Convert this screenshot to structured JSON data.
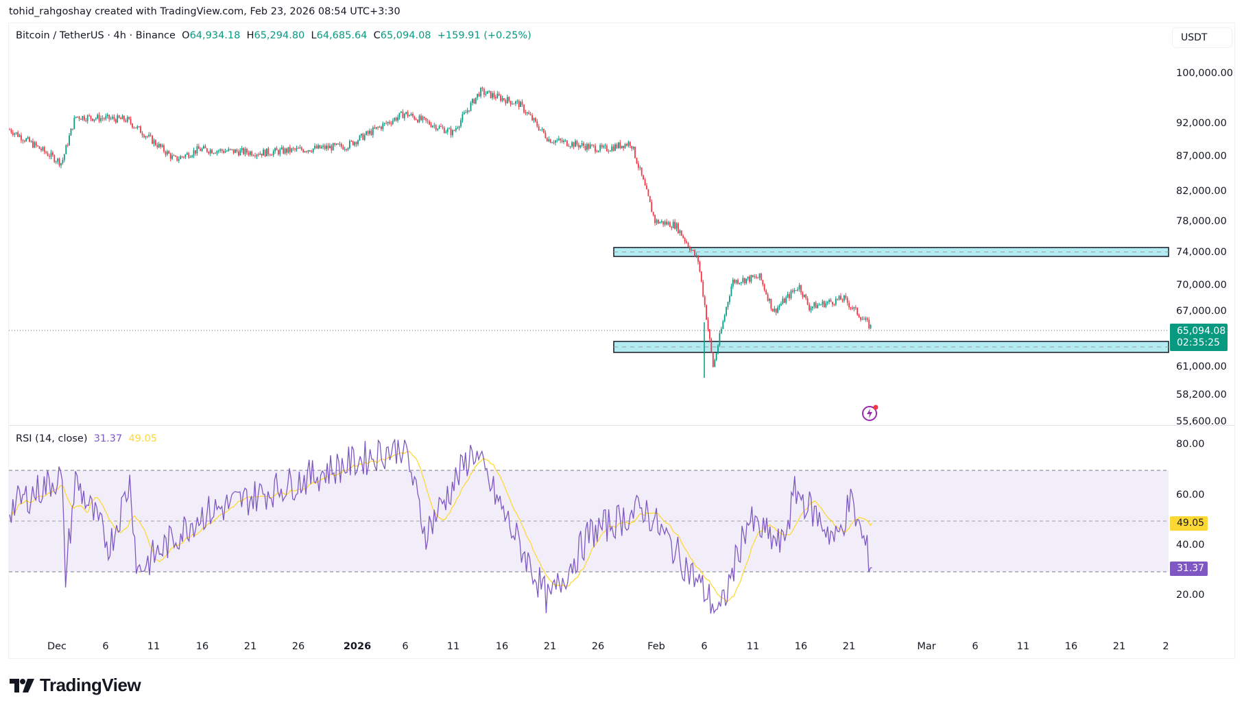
{
  "credit": "tohid_rahgoshay created with TradingView.com, Feb 23, 2026 08:54 UTC+3:30",
  "legend": {
    "symbol": "Bitcoin / TetherUS · 4h · Binance",
    "o_label": "O",
    "o": "64,934.18",
    "h_label": "H",
    "h": "65,294.80",
    "l_label": "L",
    "l": "64,685.64",
    "c_label": "C",
    "c": "65,094.08",
    "change": "+159.91 (+0.25%)"
  },
  "currency_button": "USDT",
  "price_axis": [
    "100,000.00",
    "92,000.00",
    "87,000.00",
    "82,000.00",
    "78,000.00",
    "74,000.00",
    "70,000.00",
    "67,000.00",
    "61,000.00",
    "58,200.00",
    "55,600.00"
  ],
  "last_price": {
    "value": "65,094.08",
    "countdown": "02:35:25"
  },
  "rsi": {
    "title": "RSI (14, close)",
    "value": "31.37",
    "ma_value": "49.05",
    "axis": [
      "80.00",
      "60.00",
      "40.00",
      "20.00"
    ]
  },
  "time_axis": [
    "Dec",
    "6",
    "11",
    "16",
    "21",
    "26",
    "2026",
    "6",
    "11",
    "16",
    "21",
    "26",
    "Feb",
    "6",
    "11",
    "16",
    "21",
    "Mar",
    "6",
    "11",
    "16",
    "21",
    "2"
  ],
  "logo": "TradingView",
  "colors": {
    "up": "#089981",
    "down": "#f23645",
    "rsi": "#7e57c2",
    "rsi_ma": "#fdd835",
    "zone": "#b2ebf2"
  },
  "chart_data": [
    {
      "type": "candlestick",
      "title": "Bitcoin / TetherUS · 4h · Binance",
      "ylabel": "USDT",
      "ylim": [
        55600,
        103000
      ],
      "x_range": [
        "2025-11-28",
        "2026-03-02"
      ],
      "ohlc_last": {
        "open": 64934.18,
        "high": 65294.8,
        "low": 64685.64,
        "close": 65094.08,
        "change": 159.91,
        "change_pct": 0.25
      },
      "approx_path": [
        {
          "date": "Nov 28",
          "close": 91000
        },
        {
          "date": "Dec 1",
          "close": 86000
        },
        {
          "date": "Dec 3",
          "close": 93000
        },
        {
          "date": "Dec 10",
          "close": 92500
        },
        {
          "date": "Dec 15",
          "close": 86500
        },
        {
          "date": "Dec 18",
          "close": 88000
        },
        {
          "date": "Dec 26",
          "close": 87500
        },
        {
          "date": "Jan 1",
          "close": 88500
        },
        {
          "date": "Jan 5",
          "close": 93500
        },
        {
          "date": "Jan 10",
          "close": 90500
        },
        {
          "date": "Jan 14",
          "close": 97000
        },
        {
          "date": "Jan 18",
          "close": 95000
        },
        {
          "date": "Jan 21",
          "close": 89500
        },
        {
          "date": "Jan 26",
          "close": 88000
        },
        {
          "date": "Jan 29",
          "close": 89000
        },
        {
          "date": "Jan 31",
          "close": 78000
        },
        {
          "date": "Feb 2",
          "close": 77500
        },
        {
          "date": "Feb 4",
          "close": 73000
        },
        {
          "date": "Feb 6",
          "close": 61000
        },
        {
          "date": "Feb 7",
          "close": 70500
        },
        {
          "date": "Feb 9",
          "close": 71000
        },
        {
          "date": "Feb 12",
          "close": 67000
        },
        {
          "date": "Feb 15",
          "close": 70000
        },
        {
          "date": "Feb 18",
          "close": 67500
        },
        {
          "date": "Feb 21",
          "close": 68500
        },
        {
          "date": "Feb 23",
          "close": 65094.08
        }
      ],
      "low_extreme": {
        "date": "Feb 6",
        "value": 60000
      },
      "high_extreme": {
        "date": "Jan 14",
        "value": 97900
      },
      "annotations": [
        {
          "type": "zone",
          "label": "resistance zone",
          "from": 73600,
          "to": 74800,
          "start": "Jan 29"
        },
        {
          "type": "zone",
          "label": "support zone",
          "from": 62500,
          "to": 64000,
          "start": "Jan 29"
        }
      ]
    },
    {
      "type": "line",
      "title": "RSI (14, close)",
      "ylim": [
        10,
        85
      ],
      "bands": {
        "upper": 70,
        "middle": 50,
        "lower": 30
      },
      "series": [
        {
          "name": "RSI",
          "last": 31.37,
          "approx_points": [
            [
              "Nov 28",
              55
            ],
            [
              "Dec 1",
              68
            ],
            [
              "Dec 5",
              27
            ],
            [
              "Dec 8",
              66
            ],
            [
              "Dec 12",
              40
            ],
            [
              "Dec 15",
              66
            ],
            [
              "Dec 17",
              30
            ],
            [
              "Dec 24",
              52
            ],
            [
              "Jan 1",
              70
            ],
            [
              "Jan 5",
              80
            ],
            [
              "Jan 8",
              45
            ],
            [
              "Jan 14",
              78
            ],
            [
              "Jan 18",
              50
            ],
            [
              "Jan 20",
              18
            ],
            [
              "Jan 26",
              45
            ],
            [
              "Jan 28",
              55
            ],
            [
              "Feb 2",
              22
            ],
            [
              "Feb 6",
              13
            ],
            [
              "Feb 9",
              50
            ],
            [
              "Feb 13",
              40
            ],
            [
              "Feb 16",
              62
            ],
            [
              "Feb 19",
              42
            ],
            [
              "Feb 22",
              58
            ],
            [
              "Feb 23",
              31.37
            ]
          ]
        },
        {
          "name": "RSI-based MA",
          "last": 49.05
        }
      ]
    }
  ]
}
